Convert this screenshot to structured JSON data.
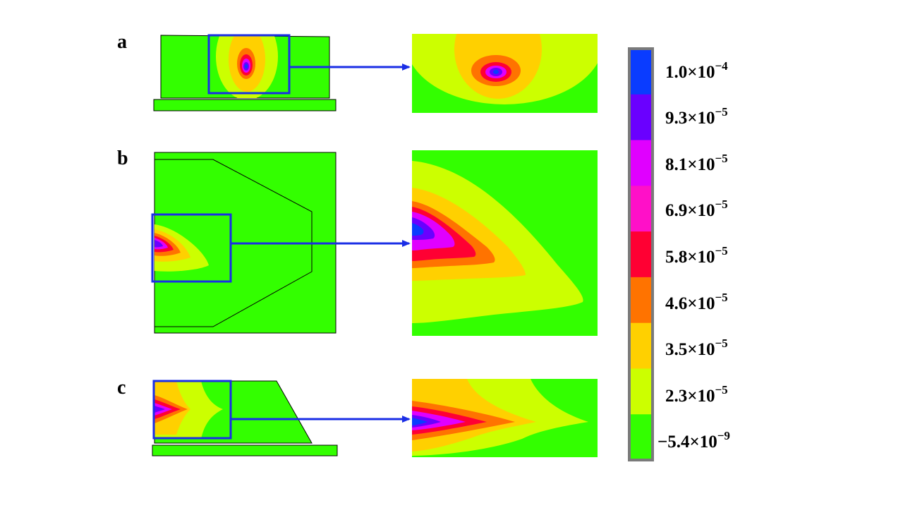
{
  "panels": [
    {
      "label": "a"
    },
    {
      "label": "b"
    },
    {
      "label": "c"
    }
  ],
  "colorbar": {
    "labels": [
      {
        "mantissa": "1.0×10",
        "exponent": "−4"
      },
      {
        "mantissa": "9.3×10",
        "exponent": "−5"
      },
      {
        "mantissa": "8.1×10",
        "exponent": "−5"
      },
      {
        "mantissa": "6.9×10",
        "exponent": "−5"
      },
      {
        "mantissa": "5.8×10",
        "exponent": "−5"
      },
      {
        "mantissa": "4.6×10",
        "exponent": "−5"
      },
      {
        "mantissa": "3.5×10",
        "exponent": "−5"
      },
      {
        "mantissa": "2.3×10",
        "exponent": "−5"
      },
      {
        "mantissa": "−5.4×10",
        "exponent": "−9"
      }
    ],
    "colors": [
      "#0a3cff",
      "#6a00ff",
      "#e000ff",
      "#ff10c8",
      "#ff0033",
      "#ff7300",
      "#ffd000",
      "#ccff00",
      "#33ff00"
    ]
  },
  "colors": {
    "background_field": "#33ff00",
    "highlight_box": "#1a2ee6",
    "arrow": "#1a2ee6",
    "outline": "#000000",
    "colorbar_frame": "#7a7a7a"
  }
}
